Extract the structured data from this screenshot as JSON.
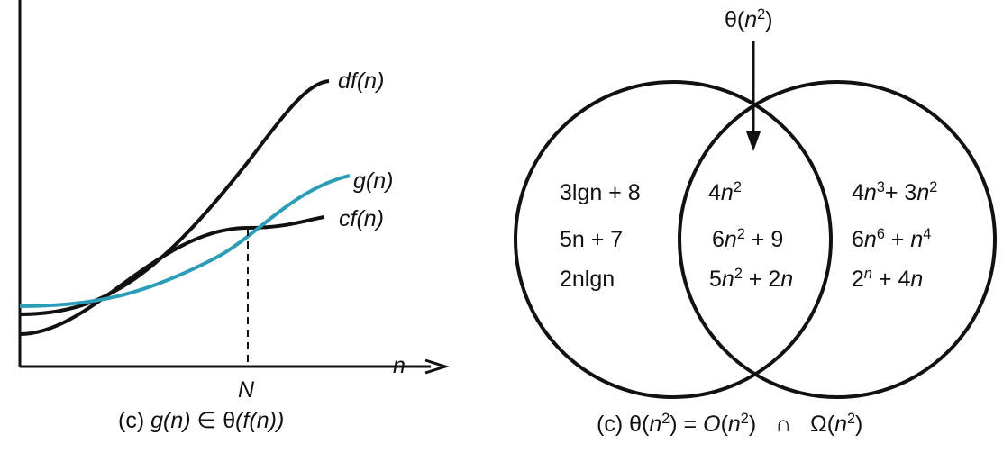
{
  "left_panel": {
    "labels": {
      "df": "df(n)",
      "g": "g(n)",
      "cf": "cf(n)",
      "axis_x": "n",
      "N": "N"
    },
    "caption": {
      "prefix": "(c)",
      "g": "g(n)",
      "in": "∈",
      "theta": "θ",
      "f": "(f(n))"
    },
    "colors": {
      "curve_black": "#111111",
      "curve_blue": "#2b9db6"
    }
  },
  "right_panel": {
    "top_label": {
      "theta": "θ(",
      "n": "n",
      "exp": "2",
      "close": ")"
    },
    "left_set": [
      "3lgn + 8",
      "5n + 7",
      "2nlgn"
    ],
    "middle_set": {
      "item1": {
        "coef": "4",
        "n": "n",
        "exp": "2"
      },
      "item2": {
        "coef": "6",
        "n": "n",
        "exp": "2",
        "rest": " + 9"
      },
      "item3": {
        "coef": "5",
        "n": "n",
        "exp": "2",
        "rest": " + 2",
        "n2": "n"
      }
    },
    "right_set": {
      "item1": {
        "coef1": "4",
        "n1": "n",
        "exp1": "3",
        "plus": "+ 3",
        "n2": "n",
        "exp2": "2"
      },
      "item2": {
        "coef1": "6",
        "n1": "n",
        "exp1": "6",
        "plus": " + ",
        "n2": "n",
        "exp2": "4"
      },
      "item3": {
        "base": "2",
        "exp": "n",
        "plus": " + 4",
        "n": "n"
      }
    },
    "caption": {
      "prefix": "(c) θ(",
      "n1": "n",
      "e1": "2",
      "eq": ") = ",
      "O": "O",
      "open2": "(",
      "n2": "n",
      "e2": "2",
      "close2": ")",
      "cap": "∩",
      "omega": "Ω(",
      "n3": "n",
      "e3": "2",
      "close3": ")"
    }
  }
}
